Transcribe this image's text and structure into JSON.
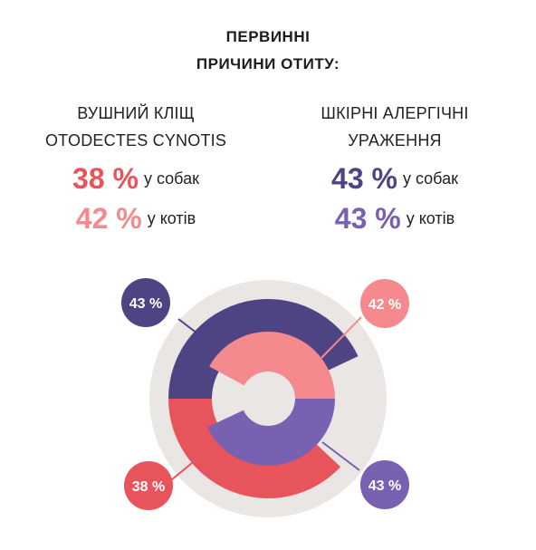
{
  "title": {
    "line1": "ПЕРВИННІ",
    "line2": "ПРИЧИНИ ОТИТУ:"
  },
  "columns": [
    {
      "title_line1": "ВУШНИЙ КЛІЩ",
      "title_line2": "OTODECTES CYNOTIS",
      "stats": [
        {
          "value": "38 %",
          "label": "у собак",
          "color": "#e8545c"
        },
        {
          "value": "42 %",
          "label": "у котів",
          "color": "#f58a8e"
        }
      ]
    },
    {
      "title_line1": "ШКІРНІ АЛЕРГІЧНІ",
      "title_line2": "УРАЖЕННЯ",
      "stats": [
        {
          "value": "43 %",
          "label": "у собак",
          "color": "#4e4483"
        },
        {
          "value": "43 %",
          "label": "у котів",
          "color": "#7861b0"
        }
      ]
    }
  ],
  "chart_data": {
    "type": "pie",
    "rings": [
      {
        "name": "outer",
        "slices": [
          {
            "label": "43 %",
            "value": 43,
            "color": "#4e4483"
          },
          {
            "label": "38 %",
            "value": 38,
            "color": "#e8545c"
          }
        ]
      },
      {
        "name": "inner",
        "slices": [
          {
            "label": "42 %",
            "value": 42,
            "color": "#f58a8e"
          },
          {
            "label": "43 %",
            "value": 43,
            "color": "#7861b0"
          }
        ]
      }
    ],
    "background_color": "#eae6e3"
  }
}
